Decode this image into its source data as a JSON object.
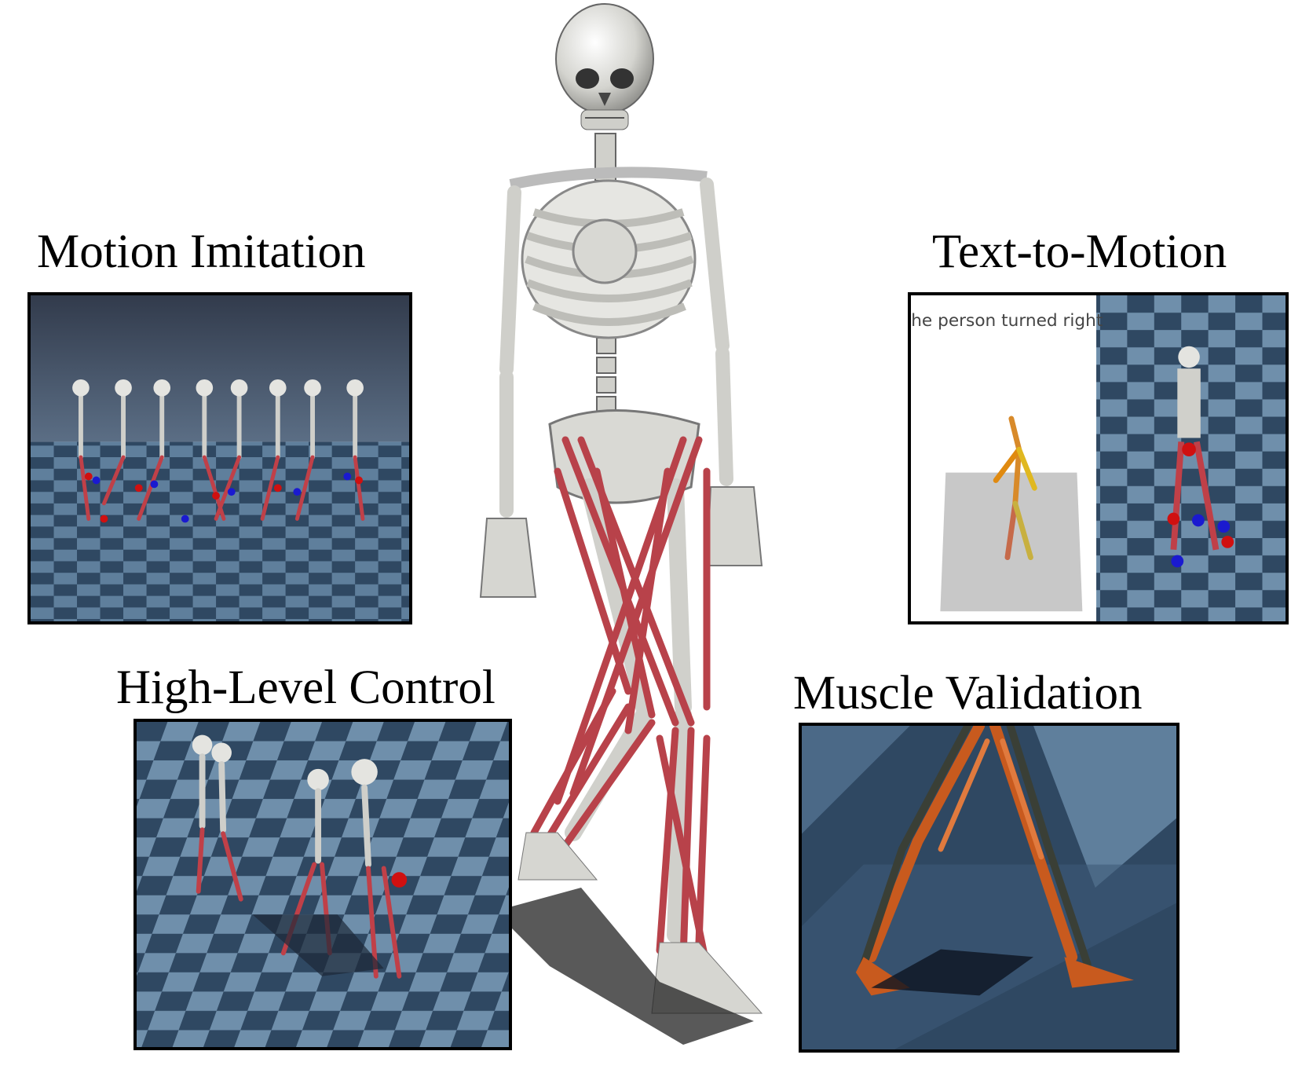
{
  "figure": {
    "central_figure_icon": "musculoskeletal-skeleton-with-red-leg-muscles",
    "panels": [
      {
        "id": "motion_imitation",
        "title": "Motion Imitation",
        "icon": "walking-skeleton-sequence"
      },
      {
        "id": "text_to_motion",
        "title": "Text-to-Motion",
        "prompt": "the person turned right",
        "icon": "stick-figure-and-skeleton"
      },
      {
        "id": "high_level_control",
        "title": "High-Level Control",
        "icon": "multiple-skeletons-walking"
      },
      {
        "id": "muscle_validation",
        "title": "Muscle Validation",
        "icon": "leg-muscles-closeup"
      }
    ],
    "colors": {
      "muscle_red": "#b8424a",
      "bone": "#d9d9d4",
      "floor_light": "#6f8fab",
      "floor_dark": "#2f4862",
      "marker_red": "#d01010",
      "marker_blue": "#1a1ad0",
      "muscle_orange": "#c85a1e"
    }
  }
}
